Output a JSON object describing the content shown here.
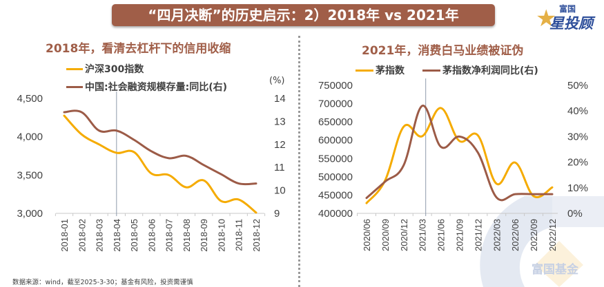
{
  "header": {
    "title": "“四月决断”的历史启示：2）2018年 vs 2021年",
    "logo_top": "富国",
    "logo_bottom": "星投顾"
  },
  "footer": {
    "source": "数据来源：wind，截至2025-3-30；基金有风险，投资需谨慎",
    "watermark": "富国基金"
  },
  "colors": {
    "banner": "#a05e48",
    "series_yellow": "#f5ab00",
    "series_brown": "#9c5b47",
    "axis_text": "#404040",
    "accent_blue": "#2d4e9a"
  },
  "chart_data": [
    {
      "type": "line",
      "title": "2018年，看清去杠杆下的信用收缩",
      "xlabel": "",
      "ylabel": "",
      "y2label": "(%)",
      "categories": [
        "2018-01",
        "2018-02",
        "2018-03",
        "2018-04",
        "2018-05",
        "2018-06",
        "2018-07",
        "2018-08",
        "2018-09",
        "2018-10",
        "2018-11",
        "2018-12"
      ],
      "series": [
        {
          "name": "沪深300指数",
          "axis": "left",
          "color": "#f5ab00",
          "values": [
            4275,
            4030,
            3900,
            3790,
            3800,
            3520,
            3500,
            3340,
            3430,
            3160,
            3180,
            3010
          ]
        },
        {
          "name": "中国:社会融资规模存量:同比(右)",
          "axis": "right",
          "color": "#9c5b47",
          "values": [
            13.4,
            13.4,
            12.6,
            12.6,
            12.2,
            11.7,
            11.4,
            11.5,
            11.1,
            10.7,
            10.3,
            10.3
          ]
        }
      ],
      "ylim": [
        3000,
        4500
      ],
      "yticks": [
        "3,000",
        "3,500",
        "4,000",
        "4,500"
      ],
      "yticks_values": [
        3000,
        3500,
        4000,
        4500
      ],
      "y2lim": [
        9,
        14
      ],
      "y2ticks": [
        "9",
        "10",
        "11",
        "12",
        "13",
        "14"
      ],
      "y2ticks_values": [
        9,
        10,
        11,
        12,
        13,
        14
      ],
      "marker_category": "2018-04",
      "legend": "top-left",
      "grid": false
    },
    {
      "type": "line",
      "title": "2021年，消费白马业绩被证伪",
      "xlabel": "",
      "ylabel": "",
      "categories": [
        "2020/06",
        "2020/09",
        "2020/12",
        "2021/03",
        "2021/06",
        "2021/09",
        "2021/12",
        "2022/03",
        "2022/06",
        "2022/09",
        "2022/12"
      ],
      "series": [
        {
          "name": "茅指数",
          "axis": "left",
          "color": "#f5ab00",
          "values": [
            428000,
            490000,
            637000,
            611000,
            688000,
            598000,
            613000,
            481000,
            539000,
            447000,
            471000
          ]
        },
        {
          "name": "茅指数净利润同比(右)",
          "axis": "right",
          "color": "#9c5b47",
          "values": [
            6.0,
            12.4,
            18.8,
            42.0,
            26.0,
            30.0,
            23.7,
            6.2,
            7.5,
            7.5,
            7.5
          ]
        }
      ],
      "ylim": [
        400000,
        750000
      ],
      "yticks": [
        "400000",
        "450000",
        "500000",
        "550000",
        "600000",
        "650000",
        "700000",
        "750000"
      ],
      "yticks_values": [
        400000,
        450000,
        500000,
        550000,
        600000,
        650000,
        700000,
        750000
      ],
      "y2lim": [
        0,
        50
      ],
      "y2ticks": [
        "0%",
        "10%",
        "20%",
        "30%",
        "40%",
        "50%"
      ],
      "y2ticks_values": [
        0,
        10,
        20,
        30,
        40,
        50
      ],
      "marker_category": "2021/03",
      "legend": "top",
      "grid": false
    }
  ]
}
